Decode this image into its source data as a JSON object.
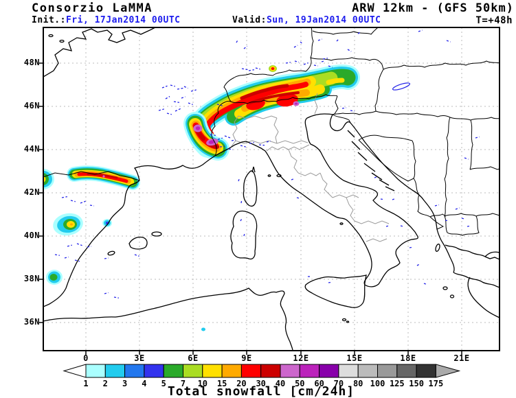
{
  "header": {
    "brand": "Consorzio LaMMA",
    "model_title": "ARW 12km - (GFS 50km)",
    "init_label": "Init.:",
    "init_value": "Fri, 17Jan2014 00UTC",
    "valid_label": "Valid:",
    "valid_value": "Sun, 19Jan2014 00UTC",
    "lead_time": "T=+48h"
  },
  "map": {
    "lat_labels": [
      "48N",
      "46N",
      "44N",
      "42N",
      "40N",
      "38N",
      "36N"
    ],
    "lon_labels": [
      "0",
      "3E",
      "6E",
      "9E",
      "12E",
      "15E",
      "18E",
      "21E"
    ]
  },
  "colorbar": {
    "title": "Total snowfall [cm/24h]",
    "tick_values": [
      "1",
      "2",
      "3",
      "4",
      "5",
      "7",
      "10",
      "15",
      "20",
      "30",
      "40",
      "50",
      "60",
      "70",
      "80",
      "100",
      "125",
      "150",
      "175"
    ],
    "cell_colors": [
      "#aaffff",
      "#22ccee",
      "#2277ee",
      "#3333ee",
      "#2aaa2a",
      "#aadd22",
      "#ffe000",
      "#ffaa00",
      "#ff0000",
      "#cc0000",
      "#cc66cc",
      "#bb22bb",
      "#8800aa",
      "#dddddd",
      "#bbbbbb",
      "#999999",
      "#666666",
      "#333333"
    ],
    "under_arrow_color": "#ffffff",
    "over_arrow_color": "#aaaaaa"
  },
  "colors": {
    "date_blue": "#1c1cee",
    "grid_gray": "#bbbbbb",
    "region_gray": "#999999",
    "contour_blue": "#2222e8"
  }
}
